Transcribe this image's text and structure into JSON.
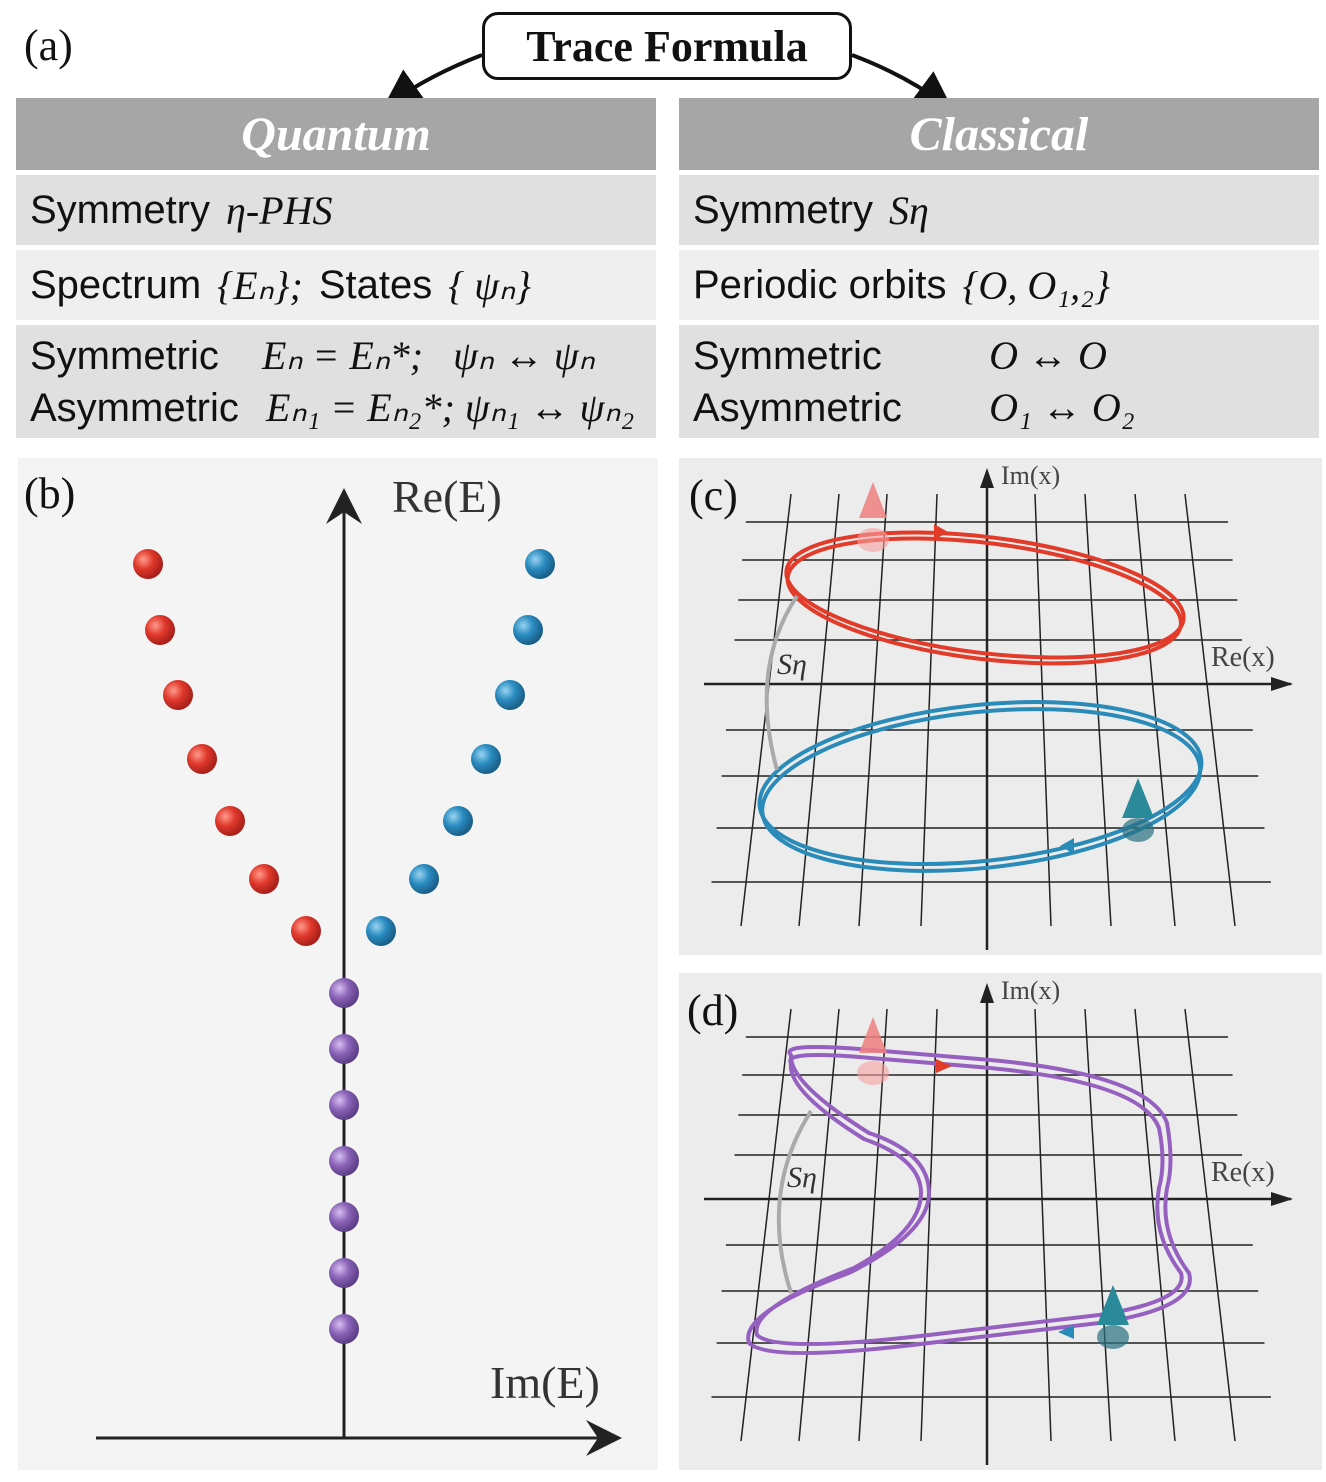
{
  "panel_labels": {
    "a": "(a)",
    "b": "(b)",
    "c": "(c)",
    "d": "(d)"
  },
  "title": "Trace Formula",
  "quantum": {
    "header": "Quantum",
    "symmetry": {
      "label": "Symmetry",
      "math": "η-PHS"
    },
    "spectrum": {
      "label": "Spectrum",
      "math1": "{Eₙ};",
      "label2": "States",
      "math2": "{ ψₙ}"
    },
    "symmetric": {
      "label": "Symmetric",
      "math": "Eₙ = Eₙ*;   ψₙ ↔ ψₙ"
    },
    "asymmetric": {
      "label": "Asymmetric",
      "math": "Eₙ₁ = Eₙ₂*; ψₙ₁ ↔ ψₙ₂"
    }
  },
  "classical": {
    "header": "Classical",
    "symmetry": {
      "label": "Symmetry",
      "math": "Sη"
    },
    "orbits": {
      "label": "Periodic orbits",
      "math": "{O, O₁,₂}"
    },
    "symmetric": {
      "label": "Symmetric",
      "math": "O ↔ O"
    },
    "asymmetric": {
      "label": "Asymmetric",
      "math": "O₁ ↔ O₂"
    }
  },
  "panel_b": {
    "y_axis_label": "Re(E)",
    "x_axis_label": "Im(E)",
    "colors": {
      "red": "#e0392b",
      "blue": "#2a8cc0",
      "purple": "#8a63b8"
    }
  },
  "panel_c": {
    "y_axis_label": "Im(x)",
    "x_axis_label": "Re(x)",
    "symmetry_label": "Sη",
    "colors": {
      "orbit1": "#e23b2a",
      "orbit2": "#2a8ab8"
    }
  },
  "panel_d": {
    "y_axis_label": "Im(x)",
    "x_axis_label": "Re(x)",
    "symmetry_label": "Sη",
    "colors": {
      "orbit": "#9560c0"
    }
  }
}
